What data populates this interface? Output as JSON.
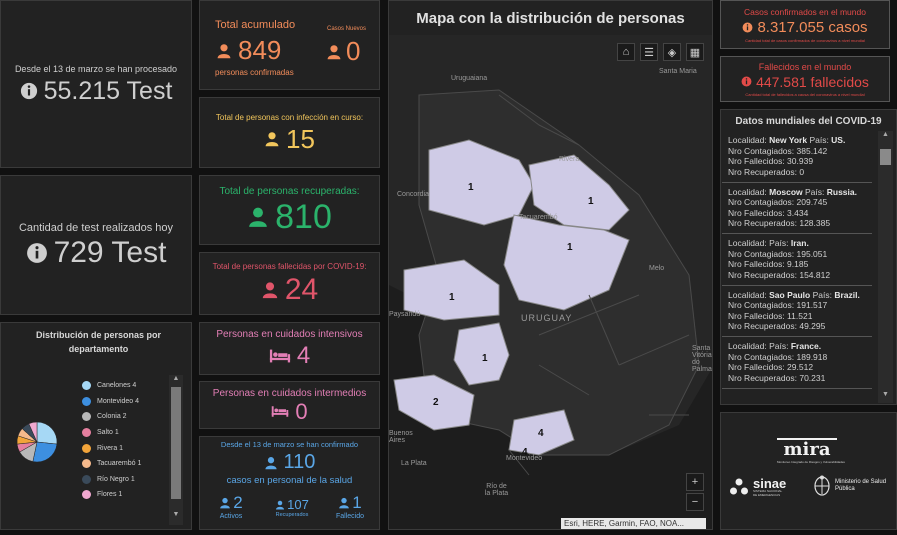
{
  "tests": {
    "processed_label": "Desde el 13 de marzo se han procesado",
    "processed_value": "55.215 Test",
    "today_label": "Cantidad de test realizados hoy",
    "today_value": "729 Test"
  },
  "totals": {
    "accumulated_label": "Total acumulado",
    "accumulated_value": "849",
    "accumulated_sub": "personas confirmadas",
    "new_label": "Casos Nuevos",
    "new_value": "0",
    "in_course_label": "Total de personas con infección en curso:",
    "in_course_value": "15",
    "recovered_label": "Total de personas recuperadas:",
    "recovered_value": "810",
    "deceased_label": "Total de personas fallecidas por COVID-19:",
    "deceased_value": "24",
    "icu_label": "Personas en cuidados intensivos",
    "icu_value": "4",
    "intermediate_label": "Personas en cuidados intermedios",
    "intermediate_value": "0"
  },
  "health_staff": {
    "since_label": "Desde el 13 de marzo se han confirmado",
    "total_value": "110",
    "sub_label": "casos en personal de la salud",
    "active_value": "2",
    "active_label": "Activos",
    "recovered_value": "107",
    "recovered_label": "Recuperados",
    "deceased_value": "1",
    "deceased_label": "Fallecido"
  },
  "distribution": {
    "title": "Distribución de personas por departamento",
    "items": [
      {
        "label": "Canelones  4",
        "color": "#a6d8f5"
      },
      {
        "label": "Montevideo  4",
        "color": "#3d8fe0"
      },
      {
        "label": "Colonia  2",
        "color": "#b8b8b8"
      },
      {
        "label": "Salto  1",
        "color": "#e57f9f"
      },
      {
        "label": "Rivera  1",
        "color": "#f2a43a"
      },
      {
        "label": "Tacuarembó  1",
        "color": "#f5b98c"
      },
      {
        "label": "Río Negro  1",
        "color": "#3a4a5a"
      },
      {
        "label": "Flores  1",
        "color": "#f0a8d0"
      }
    ],
    "pie_values": [
      4,
      4,
      2,
      1,
      1,
      1,
      1,
      1
    ]
  },
  "map": {
    "title": "Mapa con la distribución de personas",
    "attribution": "Esri, HERE, Garmin, FAO, NOA...",
    "zoom_in": "+",
    "zoom_out": "−",
    "place_labels": [
      "Uruguaiana",
      "Santa Maria",
      "Rivera",
      "Concordia",
      "Tacuarembó",
      "Melo",
      "URUGUAY",
      "Paysandú",
      "Buenos Aires",
      "La Plata",
      "Río de la Plata",
      "Montevideo",
      "Santa Vitória do Palmar"
    ],
    "markers": [
      "1",
      "1",
      "1",
      "1",
      "1",
      "2",
      "4",
      "4"
    ]
  },
  "world": {
    "confirmed_label": "Casos confirmados en el mundo",
    "confirmed_value": "8.317.055 casos",
    "confirmed_note": "Cantidad total de casos confirmados de coronavirus a nivel mundial",
    "deaths_label": "Fallecidos en el mundo",
    "deaths_value": "447.581 fallecidos",
    "deaths_note": "Cantidad total de fallecidos a causa del coronavirus a nivel mundial",
    "list_title": "Datos mundiales del COVID-19",
    "locations": [
      {
        "loc": "Localidad: ",
        "loc_name": "New York",
        "country_label": " País: ",
        "country": "US.",
        "c": "Nro Contagiados: 385.142",
        "f": "Nro Fallecidos: 30.939",
        "r": "Nro Recuperados: 0"
      },
      {
        "loc": "Localidad: ",
        "loc_name": "Moscow",
        "country_label": " País: ",
        "country": "Russia.",
        "c": "Nro Contagiados: 209.745",
        "f": "Nro Fallecidos: 3.434",
        "r": "Nro Recuperados: 128.385"
      },
      {
        "loc": "Localidad: ",
        "loc_name": "",
        "country_label": " País: ",
        "country": "Iran.",
        "c": "Nro Contagiados: 195.051",
        "f": "Nro Fallecidos: 9.185",
        "r": "Nro Recuperados: 154.812"
      },
      {
        "loc": "Localidad: ",
        "loc_name": "Sao Paulo",
        "country_label": " País: ",
        "country": "Brazil.",
        "c": "Nro Contagiados: 191.517",
        "f": "Nro Fallecidos: 11.521",
        "r": "Nro Recuperados: 49.295"
      },
      {
        "loc": "Localidad: ",
        "loc_name": "",
        "country_label": " País: ",
        "country": "France.",
        "c": "Nro Contagiados: 189.918",
        "f": "Nro Fallecidos: 29.512",
        "r": "Nro Recuperados: 70.231"
      }
    ]
  },
  "logos": {
    "mira": "mira",
    "mira_sub": "Monitoreo Integrado de Riesgos y Vulnerabilidades",
    "sinae": "sinae",
    "sinae_sub": "SISTEMA NACIONAL DE EMERGENCIAS",
    "ministry": "Ministerio de Salud Pública"
  },
  "colors": {
    "orange": "#f28c5a",
    "yellow": "#f2c65c",
    "green": "#2bb36b",
    "red": "#e0556a",
    "pink": "#e37fb6",
    "blue": "#5aa6e6",
    "grey": "#cfcfcf",
    "world_red": "#e24a48"
  }
}
